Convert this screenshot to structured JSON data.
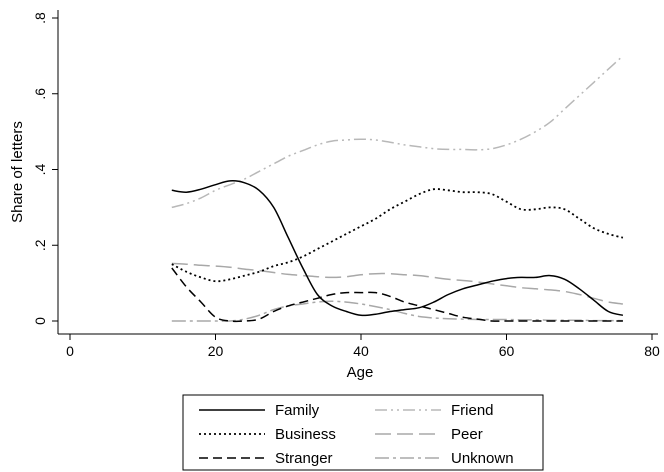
{
  "chart_data": {
    "type": "line",
    "xlabel": "Age",
    "ylabel": "Share of letters",
    "xlim": [
      0,
      80
    ],
    "ylim": [
      0,
      0.8
    ],
    "x_ticks": [
      0,
      20,
      40,
      60,
      80
    ],
    "x_tick_labels": [
      "0",
      "20",
      "40",
      "60",
      "80"
    ],
    "y_ticks": [
      0,
      0.2,
      0.4,
      0.6,
      0.8
    ],
    "y_tick_labels": [
      "0",
      ".2",
      ".4",
      ".6",
      ".8"
    ],
    "grid": false,
    "legend_position": "bottom",
    "series": [
      {
        "name": "Family",
        "style": "solid",
        "color": "#000000",
        "points": [
          [
            14,
            0.345
          ],
          [
            16,
            0.34
          ],
          [
            18,
            0.348
          ],
          [
            20,
            0.36
          ],
          [
            22,
            0.37
          ],
          [
            24,
            0.365
          ],
          [
            26,
            0.345
          ],
          [
            28,
            0.3
          ],
          [
            30,
            0.22
          ],
          [
            32,
            0.14
          ],
          [
            34,
            0.07
          ],
          [
            36,
            0.04
          ],
          [
            38,
            0.025
          ],
          [
            40,
            0.015
          ],
          [
            42,
            0.018
          ],
          [
            44,
            0.025
          ],
          [
            46,
            0.03
          ],
          [
            48,
            0.035
          ],
          [
            50,
            0.05
          ],
          [
            52,
            0.07
          ],
          [
            54,
            0.085
          ],
          [
            56,
            0.095
          ],
          [
            58,
            0.105
          ],
          [
            60,
            0.112
          ],
          [
            62,
            0.115
          ],
          [
            64,
            0.115
          ],
          [
            66,
            0.12
          ],
          [
            68,
            0.11
          ],
          [
            70,
            0.085
          ],
          [
            72,
            0.055
          ],
          [
            74,
            0.025
          ],
          [
            76,
            0.015
          ]
        ]
      },
      {
        "name": "Business",
        "style": "dotted",
        "color": "#000000",
        "points": [
          [
            14,
            0.15
          ],
          [
            16,
            0.13
          ],
          [
            18,
            0.115
          ],
          [
            20,
            0.105
          ],
          [
            22,
            0.11
          ],
          [
            24,
            0.12
          ],
          [
            26,
            0.13
          ],
          [
            28,
            0.145
          ],
          [
            30,
            0.155
          ],
          [
            32,
            0.17
          ],
          [
            34,
            0.19
          ],
          [
            36,
            0.21
          ],
          [
            38,
            0.23
          ],
          [
            40,
            0.25
          ],
          [
            42,
            0.27
          ],
          [
            44,
            0.295
          ],
          [
            46,
            0.315
          ],
          [
            48,
            0.335
          ],
          [
            50,
            0.348
          ],
          [
            52,
            0.345
          ],
          [
            54,
            0.34
          ],
          [
            56,
            0.34
          ],
          [
            58,
            0.335
          ],
          [
            60,
            0.315
          ],
          [
            62,
            0.295
          ],
          [
            64,
            0.295
          ],
          [
            66,
            0.3
          ],
          [
            68,
            0.295
          ],
          [
            70,
            0.27
          ],
          [
            72,
            0.245
          ],
          [
            74,
            0.23
          ],
          [
            76,
            0.22
          ]
        ]
      },
      {
        "name": "Stranger",
        "style": "dashed",
        "color": "#000000",
        "points": [
          [
            14,
            0.14
          ],
          [
            16,
            0.09
          ],
          [
            18,
            0.05
          ],
          [
            20,
            0.01
          ],
          [
            22,
            0.0
          ],
          [
            24,
            0.0
          ],
          [
            26,
            0.005
          ],
          [
            28,
            0.025
          ],
          [
            30,
            0.04
          ],
          [
            32,
            0.05
          ],
          [
            34,
            0.06
          ],
          [
            36,
            0.07
          ],
          [
            38,
            0.075
          ],
          [
            40,
            0.075
          ],
          [
            42,
            0.075
          ],
          [
            44,
            0.065
          ],
          [
            46,
            0.05
          ],
          [
            48,
            0.04
          ],
          [
            50,
            0.03
          ],
          [
            52,
            0.02
          ],
          [
            54,
            0.01
          ],
          [
            56,
            0.005
          ],
          [
            58,
            0.0
          ],
          [
            60,
            0.0
          ],
          [
            62,
            0.0
          ],
          [
            64,
            0.0
          ],
          [
            66,
            0.0
          ],
          [
            68,
            0.0
          ],
          [
            70,
            0.0
          ],
          [
            72,
            0.0
          ],
          [
            74,
            0.0
          ],
          [
            76,
            0.0
          ]
        ]
      },
      {
        "name": "Friend",
        "style": "dash-dot-dot",
        "color": "#b8b8b8",
        "points": [
          [
            14,
            0.3
          ],
          [
            16,
            0.31
          ],
          [
            18,
            0.325
          ],
          [
            20,
            0.345
          ],
          [
            22,
            0.36
          ],
          [
            24,
            0.375
          ],
          [
            26,
            0.395
          ],
          [
            28,
            0.415
          ],
          [
            30,
            0.435
          ],
          [
            32,
            0.45
          ],
          [
            34,
            0.465
          ],
          [
            36,
            0.475
          ],
          [
            38,
            0.478
          ],
          [
            40,
            0.48
          ],
          [
            42,
            0.478
          ],
          [
            44,
            0.472
          ],
          [
            46,
            0.465
          ],
          [
            48,
            0.46
          ],
          [
            50,
            0.455
          ],
          [
            52,
            0.453
          ],
          [
            54,
            0.453
          ],
          [
            56,
            0.452
          ],
          [
            58,
            0.455
          ],
          [
            60,
            0.465
          ],
          [
            62,
            0.48
          ],
          [
            64,
            0.5
          ],
          [
            66,
            0.525
          ],
          [
            68,
            0.56
          ],
          [
            70,
            0.595
          ],
          [
            72,
            0.63
          ],
          [
            74,
            0.665
          ],
          [
            76,
            0.7
          ]
        ]
      },
      {
        "name": "Peer",
        "style": "long-dash",
        "color": "#a8a8a8",
        "points": [
          [
            14,
            0.152
          ],
          [
            16,
            0.15
          ],
          [
            18,
            0.147
          ],
          [
            20,
            0.145
          ],
          [
            22,
            0.142
          ],
          [
            24,
            0.137
          ],
          [
            26,
            0.133
          ],
          [
            28,
            0.128
          ],
          [
            30,
            0.123
          ],
          [
            32,
            0.12
          ],
          [
            34,
            0.117
          ],
          [
            36,
            0.115
          ],
          [
            38,
            0.117
          ],
          [
            40,
            0.122
          ],
          [
            42,
            0.125
          ],
          [
            44,
            0.125
          ],
          [
            46,
            0.122
          ],
          [
            48,
            0.12
          ],
          [
            50,
            0.115
          ],
          [
            52,
            0.11
          ],
          [
            54,
            0.107
          ],
          [
            56,
            0.103
          ],
          [
            58,
            0.098
          ],
          [
            60,
            0.093
          ],
          [
            62,
            0.088
          ],
          [
            64,
            0.085
          ],
          [
            66,
            0.082
          ],
          [
            68,
            0.078
          ],
          [
            70,
            0.07
          ],
          [
            72,
            0.06
          ],
          [
            74,
            0.05
          ],
          [
            76,
            0.045
          ]
        ]
      },
      {
        "name": "Unknown",
        "style": "dash-dot",
        "color": "#a8a8a8",
        "points": [
          [
            14,
            0.0
          ],
          [
            16,
            0.0
          ],
          [
            18,
            0.0
          ],
          [
            20,
            0.0
          ],
          [
            22,
            0.0
          ],
          [
            24,
            0.005
          ],
          [
            26,
            0.015
          ],
          [
            28,
            0.03
          ],
          [
            30,
            0.04
          ],
          [
            32,
            0.045
          ],
          [
            34,
            0.05
          ],
          [
            36,
            0.052
          ],
          [
            38,
            0.05
          ],
          [
            40,
            0.045
          ],
          [
            42,
            0.038
          ],
          [
            44,
            0.03
          ],
          [
            46,
            0.02
          ],
          [
            48,
            0.012
          ],
          [
            50,
            0.008
          ],
          [
            52,
            0.006
          ],
          [
            54,
            0.005
          ],
          [
            56,
            0.004
          ],
          [
            58,
            0.004
          ],
          [
            60,
            0.004
          ],
          [
            62,
            0.003
          ],
          [
            64,
            0.003
          ],
          [
            66,
            0.002
          ],
          [
            68,
            0.002
          ],
          [
            70,
            0.002
          ],
          [
            72,
            0.001
          ],
          [
            74,
            0.001
          ],
          [
            76,
            0.001
          ]
        ]
      }
    ],
    "legend": [
      {
        "label": "Family",
        "series": 0
      },
      {
        "label": "Friend",
        "series": 3
      },
      {
        "label": "Business",
        "series": 1
      },
      {
        "label": "Peer",
        "series": 4
      },
      {
        "label": "Stranger",
        "series": 2
      },
      {
        "label": "Unknown",
        "series": 5
      }
    ]
  }
}
